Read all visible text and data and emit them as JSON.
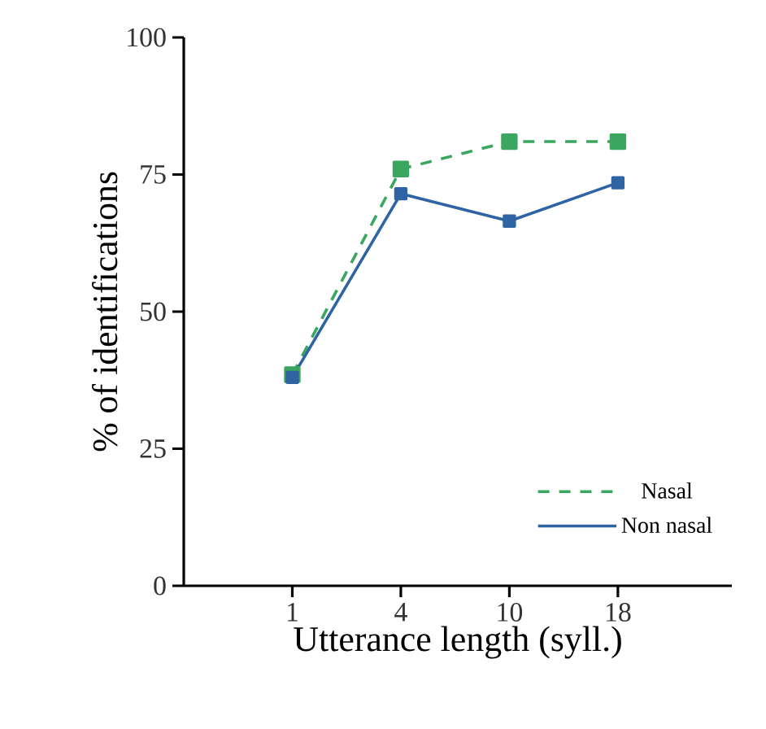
{
  "chart_data": {
    "type": "line",
    "xlabel": "Utterance length (syll.)",
    "ylabel": "% of identifications",
    "categories": [
      "1",
      "4",
      "10",
      "18"
    ],
    "series": [
      {
        "name": "Nasal",
        "color": "#3aa660",
        "values": [
          38.5,
          76,
          81,
          81
        ],
        "line_style": "dashed"
      },
      {
        "name": "Non nasal",
        "color": "#2e64a3",
        "values": [
          38,
          71.5,
          66.5,
          73.5
        ],
        "line_style": "solid"
      }
    ],
    "ylim": [
      0,
      100
    ],
    "yticks": [
      0,
      25,
      50,
      75,
      100
    ],
    "marker": "square",
    "legend": "bottom right",
    "grid": false
  }
}
